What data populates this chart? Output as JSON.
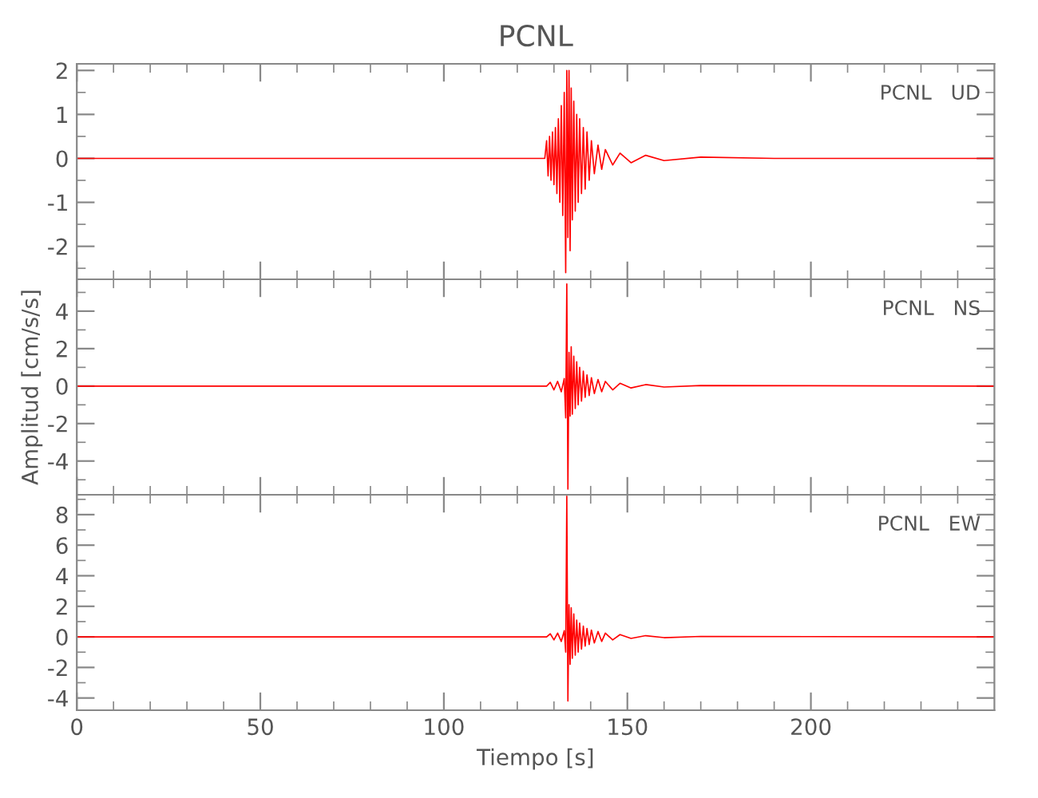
{
  "chart_data": [
    {
      "type": "line",
      "title": "PCNL",
      "annotations": [
        "PCNL   UD"
      ],
      "tick_labels": "y",
      "grid": false,
      "marker": "none",
      "line_style": "solid",
      "xlim": [
        0,
        250
      ],
      "ylim": [
        -2.75,
        2.15
      ],
      "xticks": [
        0,
        {
          "value": 10,
          "label": null
        },
        {
          "value": 20,
          "label": null
        },
        {
          "value": 30,
          "label": null
        },
        {
          "value": 40,
          "label": null
        },
        50,
        {
          "value": 60,
          "label": null
        },
        {
          "value": 70,
          "label": null
        },
        {
          "value": 80,
          "label": null
        },
        {
          "value": 90,
          "label": null
        },
        100,
        {
          "value": 110,
          "label": null
        },
        {
          "value": 120,
          "label": null
        },
        {
          "value": 130,
          "label": null
        },
        {
          "value": 140,
          "label": null
        },
        150,
        {
          "value": 160,
          "label": null
        },
        {
          "value": 170,
          "label": null
        },
        {
          "value": 180,
          "label": null
        },
        {
          "value": 190,
          "label": null
        },
        200,
        {
          "value": 210,
          "label": null
        },
        {
          "value": 220,
          "label": null
        },
        {
          "value": 230,
          "label": null
        },
        {
          "value": 240,
          "label": null
        }
      ],
      "yticks": [
        {
          "value": -2.5,
          "label": null
        },
        -2,
        {
          "value": -1.5,
          "label": null
        },
        -1,
        {
          "value": -0.5,
          "label": null
        },
        0,
        {
          "value": 0.5,
          "label": null
        },
        1,
        {
          "value": 1.5,
          "label": null
        },
        2
      ],
      "series": [
        {
          "color": "#ff0000",
          "x": [
            0,
            40,
            80,
            120,
            127.5,
            128,
            128.4,
            128.8,
            129.2,
            129.6,
            130,
            130.4,
            130.8,
            131.2,
            131.6,
            132,
            132.4,
            132.8,
            133.2,
            133.5,
            133.8,
            134.1,
            134.4,
            134.7,
            135,
            135.4,
            135.8,
            136.2,
            136.6,
            137,
            137.5,
            138,
            138.5,
            139,
            139.6,
            140.2,
            141,
            142,
            143,
            144,
            146,
            148,
            151,
            155,
            160,
            170,
            190,
            250
          ],
          "values": [
            0,
            0,
            0,
            0,
            0,
            0.4,
            -0.4,
            0.5,
            -0.5,
            0.6,
            -0.6,
            0.7,
            -0.8,
            0.9,
            -1.0,
            1.2,
            -1.3,
            1.5,
            -2.6,
            2.0,
            -1.8,
            2.0,
            -2.1,
            1.6,
            -1.4,
            1.3,
            -1.2,
            1.0,
            -1.0,
            0.9,
            -0.8,
            0.7,
            -0.7,
            0.6,
            -0.5,
            0.4,
            -0.35,
            0.3,
            -0.25,
            0.2,
            -0.15,
            0.12,
            -0.1,
            0.07,
            -0.05,
            0.03,
            0,
            0
          ]
        }
      ]
    },
    {
      "type": "line",
      "ylabel": "Amplitud [cm/s/s]",
      "annotations": [
        "PCNL   NS"
      ],
      "tick_labels": "y",
      "grid": false,
      "marker": "none",
      "line_style": "solid",
      "xlim": [
        0,
        250
      ],
      "ylim": [
        -5.8,
        5.7
      ],
      "xticks": [
        0,
        {
          "value": 10,
          "label": null
        },
        {
          "value": 20,
          "label": null
        },
        {
          "value": 30,
          "label": null
        },
        {
          "value": 40,
          "label": null
        },
        50,
        {
          "value": 60,
          "label": null
        },
        {
          "value": 70,
          "label": null
        },
        {
          "value": 80,
          "label": null
        },
        {
          "value": 90,
          "label": null
        },
        100,
        {
          "value": 110,
          "label": null
        },
        {
          "value": 120,
          "label": null
        },
        {
          "value": 130,
          "label": null
        },
        {
          "value": 140,
          "label": null
        },
        150,
        {
          "value": 160,
          "label": null
        },
        {
          "value": 170,
          "label": null
        },
        {
          "value": 180,
          "label": null
        },
        {
          "value": 190,
          "label": null
        },
        200,
        {
          "value": 210,
          "label": null
        },
        {
          "value": 220,
          "label": null
        },
        {
          "value": 230,
          "label": null
        },
        {
          "value": 240,
          "label": null
        }
      ],
      "yticks": [
        {
          "value": -5,
          "label": null
        },
        -4,
        {
          "value": -3,
          "label": null
        },
        -2,
        {
          "value": -1,
          "label": null
        },
        0,
        {
          "value": 1,
          "label": null
        },
        2,
        {
          "value": 3,
          "label": null
        },
        4,
        {
          "value": 5,
          "label": null
        }
      ],
      "series": [
        {
          "color": "#ff0000",
          "x": [
            0,
            40,
            80,
            120,
            128,
            129,
            130,
            131,
            132,
            132.8,
            133.2,
            133.5,
            133.8,
            134.1,
            134.4,
            134.7,
            135,
            135.4,
            135.8,
            136.2,
            136.6,
            137,
            137.5,
            138,
            138.5,
            139,
            139.6,
            140.2,
            141,
            142,
            143,
            144,
            146,
            148,
            151,
            155,
            160,
            170,
            250
          ],
          "values": [
            0,
            0,
            0,
            0,
            0,
            0.2,
            -0.2,
            0.25,
            -0.3,
            0.4,
            -1.7,
            5.45,
            -5.5,
            1.8,
            -1.6,
            2.1,
            -1.5,
            1.6,
            -1.2,
            1.3,
            -1.0,
            1.0,
            -0.8,
            0.8,
            -0.6,
            0.6,
            -0.5,
            0.45,
            -0.4,
            0.35,
            -0.3,
            0.25,
            -0.2,
            0.15,
            -0.1,
            0.08,
            -0.05,
            0.03,
            0
          ]
        }
      ]
    },
    {
      "type": "line",
      "xlabel": "Tiempo [s]",
      "annotations": [
        "PCNL   EW"
      ],
      "grid": false,
      "marker": "none",
      "line_style": "solid",
      "xlim": [
        0,
        250
      ],
      "ylim": [
        -4.8,
        9.3
      ],
      "xticks": [
        0,
        {
          "value": 10,
          "label": null
        },
        {
          "value": 20,
          "label": null
        },
        {
          "value": 30,
          "label": null
        },
        {
          "value": 40,
          "label": null
        },
        50,
        {
          "value": 60,
          "label": null
        },
        {
          "value": 70,
          "label": null
        },
        {
          "value": 80,
          "label": null
        },
        {
          "value": 90,
          "label": null
        },
        100,
        {
          "value": 110,
          "label": null
        },
        {
          "value": 120,
          "label": null
        },
        {
          "value": 130,
          "label": null
        },
        {
          "value": 140,
          "label": null
        },
        150,
        {
          "value": 160,
          "label": null
        },
        {
          "value": 170,
          "label": null
        },
        {
          "value": 180,
          "label": null
        },
        {
          "value": 190,
          "label": null
        },
        200,
        {
          "value": 210,
          "label": null
        },
        {
          "value": 220,
          "label": null
        },
        {
          "value": 230,
          "label": null
        },
        {
          "value": 240,
          "label": null
        }
      ],
      "yticks": [
        -4,
        {
          "value": -3,
          "label": null
        },
        -2,
        {
          "value": -1,
          "label": null
        },
        0,
        {
          "value": 1,
          "label": null
        },
        2,
        {
          "value": 3,
          "label": null
        },
        4,
        {
          "value": 5,
          "label": null
        },
        6,
        {
          "value": 7,
          "label": null
        },
        8,
        {
          "value": 9,
          "label": null
        }
      ],
      "series": [
        {
          "color": "#ff0000",
          "x": [
            0,
            40,
            80,
            120,
            128,
            129,
            130,
            131,
            132,
            132.8,
            133.2,
            133.5,
            133.8,
            134.1,
            134.4,
            134.7,
            135,
            135.4,
            135.8,
            136.2,
            136.6,
            137,
            137.5,
            138,
            138.5,
            139,
            139.6,
            140.2,
            141,
            142,
            143,
            144,
            146,
            148,
            151,
            155,
            160,
            170,
            250
          ],
          "values": [
            0,
            0,
            0,
            0,
            0,
            0.2,
            -0.2,
            0.25,
            -0.3,
            0.4,
            -1.0,
            9.2,
            -4.2,
            2.1,
            -1.8,
            1.9,
            -1.4,
            1.5,
            -1.2,
            1.1,
            -1.0,
            0.9,
            -0.8,
            0.7,
            -0.6,
            0.55,
            -0.5,
            0.45,
            -0.4,
            0.35,
            -0.3,
            0.25,
            -0.2,
            0.15,
            -0.1,
            0.08,
            -0.05,
            0.03,
            0
          ]
        }
      ]
    }
  ]
}
